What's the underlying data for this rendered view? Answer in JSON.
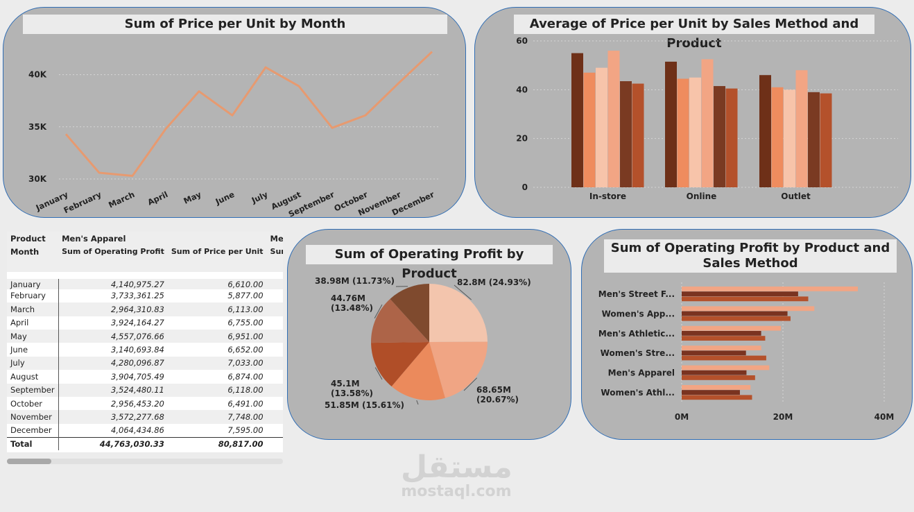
{
  "chart_data": [
    {
      "type": "line",
      "title": "Sum of Price per Unit by Month",
      "categories": [
        "January",
        "February",
        "March",
        "April",
        "May",
        "June",
        "July",
        "August",
        "September",
        "October",
        "November",
        "December"
      ],
      "values": [
        34300,
        30600,
        30300,
        34800,
        38400,
        36100,
        40700,
        38900,
        34900,
        36100,
        39200,
        42200
      ],
      "ylim": [
        29000,
        43500
      ],
      "yticks": [
        30000,
        35000,
        40000
      ],
      "ytick_labels": [
        "30K",
        "35K",
        "40K"
      ],
      "grid": true,
      "color": "#e79a70"
    },
    {
      "type": "bar",
      "title": "Average of Price per Unit by Sales Method and Product",
      "categories": [
        "In-store",
        "Online",
        "Outlet"
      ],
      "series": [
        {
          "color": "#6e3018",
          "values": [
            55,
            51.5,
            46
          ]
        },
        {
          "color": "#ef8c5e",
          "values": [
            47,
            44.5,
            41
          ]
        },
        {
          "color": "#f7c4aa",
          "values": [
            49,
            45,
            40
          ]
        },
        {
          "color": "#f2a584",
          "values": [
            56,
            52.5,
            48
          ]
        },
        {
          "color": "#7a3a22",
          "values": [
            43.5,
            41.5,
            39
          ]
        },
        {
          "color": "#b4512b",
          "values": [
            42.5,
            40.5,
            38.5
          ]
        }
      ],
      "ylim": [
        0,
        60
      ],
      "yticks": [
        0,
        20,
        40,
        60
      ],
      "grid": true
    },
    {
      "type": "pie",
      "title": "Sum of Operating Profit by Product",
      "slices": [
        {
          "label": "82.8M (24.93%)",
          "value": 82.8,
          "color": "#f3c5ad"
        },
        {
          "label": "68.65M (20.67%)",
          "value": 68.65,
          "color": "#f0a584"
        },
        {
          "label": "51.85M (15.61%)",
          "value": 51.85,
          "color": "#eb8a5c"
        },
        {
          "label": "45.1M (13.58%)",
          "value": 45.1,
          "color": "#b04e28"
        },
        {
          "label": "44.76M (13.48%)",
          "value": 44.76,
          "color": "#ad6448"
        },
        {
          "label": "38.98M (11.73%)",
          "value": 38.98,
          "color": "#7f4a2e"
        }
      ]
    },
    {
      "type": "bar",
      "orientation": "horizontal",
      "title": "Sum of Operating Profit by Product and Sales Method",
      "categories": [
        "Men's Street F...",
        "Women's App...",
        "Men's Athletic...",
        "Women's Stre...",
        "Men's Apparel",
        "Women's Athl..."
      ],
      "series": [
        {
          "color": "#f2a584",
          "values": [
            34.8,
            26.2,
            19.6,
            15.7,
            17.3,
            13.6
          ]
        },
        {
          "color": "#7a3320",
          "values": [
            23.0,
            20.9,
            15.7,
            12.7,
            12.8,
            11.5
          ]
        },
        {
          "color": "#b4512b",
          "values": [
            25.0,
            21.5,
            16.5,
            16.7,
            14.5,
            13.9
          ]
        }
      ],
      "xlim": [
        0,
        40
      ],
      "xticks": [
        0,
        20,
        40
      ],
      "xtick_labels": [
        "0M",
        "20M",
        "40M"
      ]
    }
  ],
  "table": {
    "header1": [
      "Product",
      "Men's Apparel",
      "",
      "Men's"
    ],
    "header2": [
      "Month",
      "Sum of Operating Profit",
      "Sum of Price per Unit",
      "Sum o"
    ],
    "rows": [
      {
        "month": "January",
        "profit": "4,140,975.27",
        "price": "6,610.00"
      },
      {
        "month": "February",
        "profit": "3,733,361.25",
        "price": "5,877.00"
      },
      {
        "month": "March",
        "profit": "2,964,310.83",
        "price": "6,113.00"
      },
      {
        "month": "April",
        "profit": "3,924,164.27",
        "price": "6,755.00"
      },
      {
        "month": "May",
        "profit": "4,557,076.66",
        "price": "6,951.00"
      },
      {
        "month": "June",
        "profit": "3,140,693.84",
        "price": "6,652.00"
      },
      {
        "month": "July",
        "profit": "4,280,096.87",
        "price": "7,033.00"
      },
      {
        "month": "August",
        "profit": "3,904,705.49",
        "price": "6,874.00"
      },
      {
        "month": "September",
        "profit": "3,524,480.11",
        "price": "6,118.00"
      },
      {
        "month": "October",
        "profit": "2,956,453.20",
        "price": "6,491.00"
      },
      {
        "month": "November",
        "profit": "3,572,277.68",
        "price": "7,748.00"
      },
      {
        "month": "December",
        "profit": "4,064,434.86",
        "price": "7,595.00"
      }
    ],
    "total": {
      "month": "Total",
      "profit": "44,763,030.33",
      "price": "80,817.00"
    }
  },
  "watermark": {
    "arabic": "مستقل",
    "latin": "mostaql.com"
  }
}
